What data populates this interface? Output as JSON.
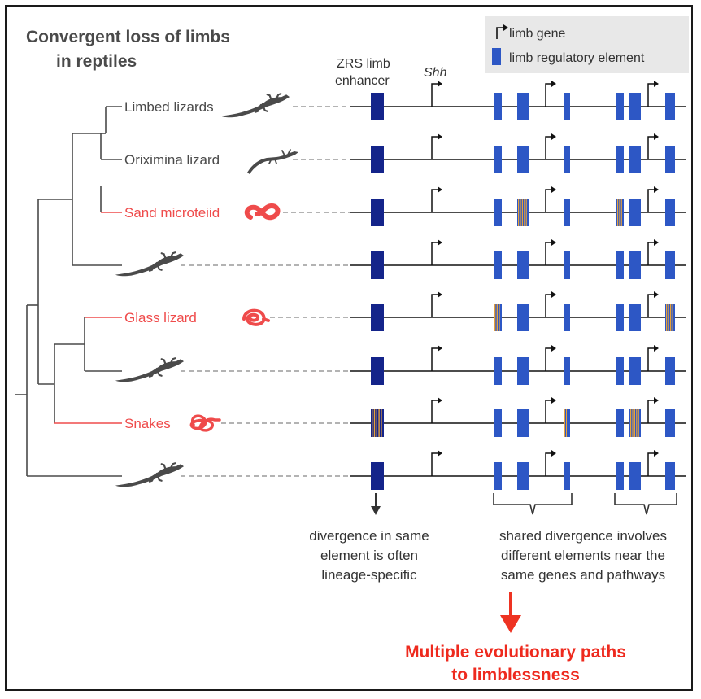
{
  "title": {
    "line1": "Convergent loss of limbs",
    "line2": "in reptiles"
  },
  "legend": {
    "gene_label": "limb gene",
    "element_label": "limb regulatory element"
  },
  "headers": {
    "zrs_line1": "ZRS limb",
    "zrs_line2": "enhancer",
    "shh": "Shh"
  },
  "taxa": [
    {
      "label": "Limbed lizards",
      "limbless": false,
      "icon": "lizard-icon"
    },
    {
      "label": "Oriximina lizard",
      "limbless": false,
      "icon": "slender-lizard-icon"
    },
    {
      "label": "Sand microteiid",
      "limbless": true,
      "icon": "worm-lizard-icon"
    },
    {
      "label": "",
      "limbless": false,
      "icon": "lizard-icon"
    },
    {
      "label": "Glass lizard",
      "limbless": true,
      "icon": "coiled-lizard-icon"
    },
    {
      "label": "",
      "limbless": false,
      "icon": "lizard-icon"
    },
    {
      "label": "Snakes",
      "limbless": true,
      "icon": "snake-icon"
    },
    {
      "label": "",
      "limbless": false,
      "icon": "lizard-icon"
    }
  ],
  "divergent_elements": [
    [],
    [],
    [
      "e2",
      "e4"
    ],
    [],
    [
      "e1",
      "e7"
    ],
    [],
    [
      "zrs",
      "e3",
      "e5"
    ],
    []
  ],
  "notes": {
    "left_line1": "divergence in same",
    "left_line2": "element is often",
    "left_line3": "lineage-specific",
    "right_line1": "shared divergence involves",
    "right_line2": "different elements near the",
    "right_line3": "same genes and pathways"
  },
  "conclusion": {
    "line1": "Multiple evolutionary paths",
    "line2": "to limblessness"
  },
  "colors": {
    "limbless": "#ef4b4b",
    "limbed": "#4a4a4a",
    "zrs": "#14248a",
    "element": "#2d57c5",
    "divergence_stripe": "#e8a23a",
    "arrow_red": "#ee3322",
    "conclusion": "#ee2a1e",
    "legend_bg": "#e8e8e8"
  }
}
